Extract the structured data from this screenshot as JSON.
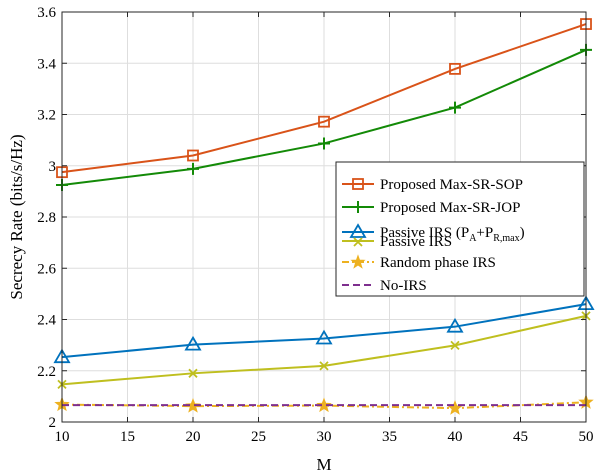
{
  "chart_data": {
    "type": "line",
    "xlabel": "M",
    "ylabel": "Secrecy Rate (bits/s/Hz)",
    "x": [
      10,
      20,
      30,
      40,
      50
    ],
    "xlim": [
      10,
      50
    ],
    "ylim": [
      2,
      3.6
    ],
    "xticks": [
      10,
      15,
      20,
      25,
      30,
      35,
      40,
      45,
      50
    ],
    "xtick_labels": [
      "10",
      "15",
      "20",
      "25",
      "30",
      "35",
      "40",
      "45",
      "50"
    ],
    "yticks": [
      2,
      2.2,
      2.4,
      2.6,
      2.8,
      3,
      3.2,
      3.4,
      3.6
    ],
    "ytick_labels": [
      "2",
      "2.2",
      "2.4",
      "2.6",
      "2.8",
      "3",
      "3.2",
      "3.4",
      "3.6"
    ],
    "grid": true,
    "legend_position": "right",
    "series": [
      {
        "name": "Proposed Max-SR-SOP",
        "values": [
          2.975,
          3.04,
          3.172,
          3.378,
          3.553
        ],
        "color": "#D95319",
        "marker": "square",
        "dash": "solid"
      },
      {
        "name": "Proposed Max-SR-JOP",
        "values": [
          2.925,
          2.988,
          3.087,
          3.227,
          3.452
        ],
        "color": "#138A07",
        "marker": "plus",
        "dash": "solid"
      },
      {
        "name": "Passive IRS (P",
        "name_sub1": "A",
        "name_mid": "+P",
        "name_sub2": "R,max",
        "name_end": ")",
        "values": [
          2.253,
          2.302,
          2.326,
          2.372,
          2.46
        ],
        "color": "#0072BD",
        "marker": "triangle",
        "dash": "solid"
      },
      {
        "name": "Passive IRS",
        "values": [
          2.147,
          2.19,
          2.219,
          2.299,
          2.414
        ],
        "color": "#BFBF1F",
        "marker": "x",
        "dash": "solid"
      },
      {
        "name": "Random phase IRS",
        "values": [
          2.068,
          2.062,
          2.064,
          2.054,
          2.077
        ],
        "color": "#EDB120",
        "marker": "star",
        "dash": "dashdot"
      },
      {
        "name": "No-IRS",
        "values": [
          2.066,
          2.066,
          2.066,
          2.066,
          2.066
        ],
        "color": "#7E2F8E",
        "marker": "none",
        "dash": "dash"
      }
    ]
  }
}
